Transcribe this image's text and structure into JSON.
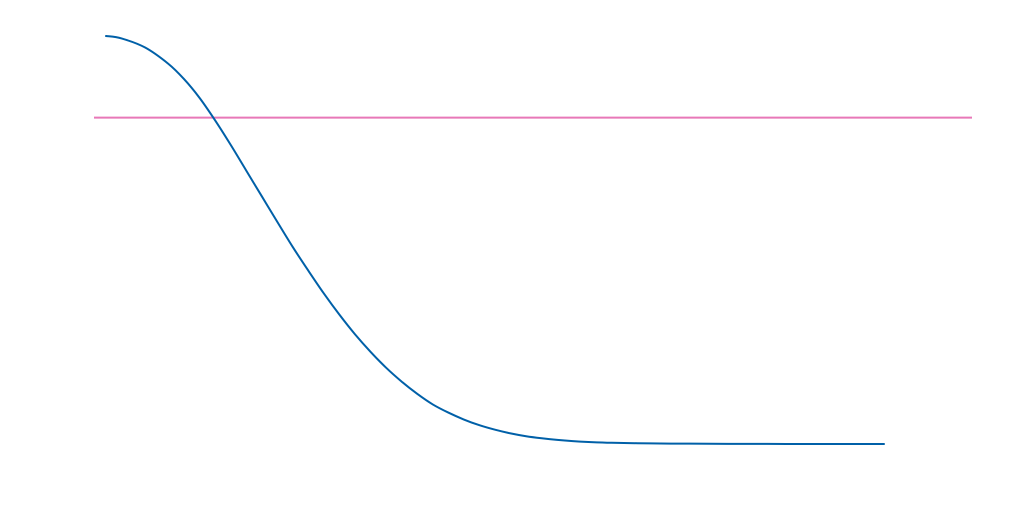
{
  "chart_data": {
    "type": "line",
    "title": "",
    "xlabel": "",
    "ylabel": "",
    "grid": false,
    "xlim": [
      0,
      1
    ],
    "ylim": [
      0,
      1
    ],
    "series": [
      {
        "color": "#0060a8",
        "x": [
          0.0,
          0.02,
          0.05,
          0.08,
          0.1,
          0.12,
          0.14,
          0.16,
          0.18,
          0.2,
          0.22,
          0.24,
          0.26,
          0.28,
          0.3,
          0.32,
          0.34,
          0.36,
          0.38,
          0.4,
          0.42,
          0.44,
          0.46,
          0.48,
          0.5,
          0.52,
          0.54,
          0.56,
          0.58,
          0.6,
          0.62,
          0.65,
          0.7,
          0.75,
          0.8,
          0.85,
          0.9,
          0.95,
          1.0
        ],
        "y": [
          1.0,
          0.994,
          0.972,
          0.932,
          0.895,
          0.849,
          0.794,
          0.734,
          0.671,
          0.608,
          0.545,
          0.483,
          0.425,
          0.369,
          0.317,
          0.269,
          0.226,
          0.187,
          0.153,
          0.123,
          0.097,
          0.077,
          0.06,
          0.046,
          0.035,
          0.026,
          0.019,
          0.014,
          0.01,
          0.007,
          0.005,
          0.003,
          0.0015,
          0.0008,
          0.0004,
          0.0002,
          0.0001,
          0.0,
          0.0
        ]
      }
    ],
    "reference_lines": [
      {
        "orientation": "horizontal",
        "y": 0.8,
        "color": "#e878b8"
      }
    ]
  }
}
